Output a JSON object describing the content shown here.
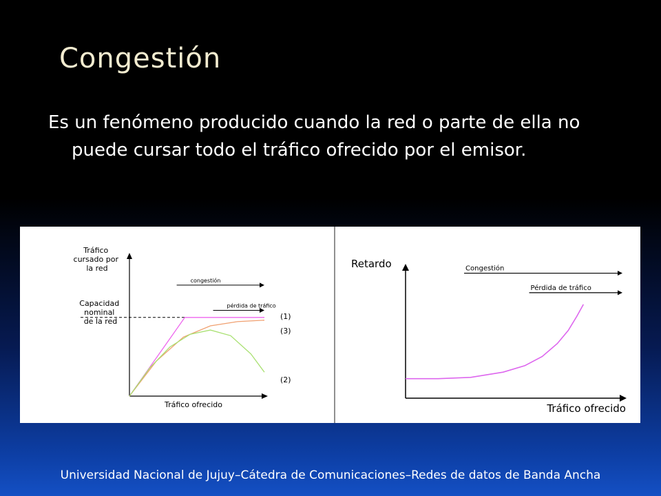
{
  "slide": {
    "title": "Congestión",
    "paragraph": "Es un fenómeno producido  cuando la red o parte de ella no puede cursar todo el tráfico ofrecido por el emisor.",
    "footer": "Universidad Nacional de Jujuy–Cátedra de Comunicaciones–Redes de datos de Banda Ancha"
  },
  "chart_data": [
    {
      "type": "line",
      "title": "",
      "ylabel": [
        "Tráfico",
        "cursado por",
        "la red"
      ],
      "xlabel": "Tráfico ofrecido",
      "capacity_label": [
        "Capacidad",
        "nominal",
        "de la red"
      ],
      "xlim": [
        0,
        100
      ],
      "ylim": [
        0,
        100
      ],
      "capacity": 56,
      "capacity_x": 41,
      "regions": [
        {
          "label": "congestión",
          "x_start": 35,
          "x_end": 100,
          "y": 79
        },
        {
          "label": "pérdida de tráfico",
          "x_start": 62,
          "x_end": 100,
          "y": 61
        }
      ],
      "series": [
        {
          "name": "(1)",
          "color": "#ee66ee",
          "points": [
            [
              0,
              0
            ],
            [
              41,
              56
            ],
            [
              100,
              56
            ]
          ]
        },
        {
          "name": "(3)",
          "color": "#f0a070",
          "points": [
            [
              0,
              0
            ],
            [
              20,
              25
            ],
            [
              40,
              42
            ],
            [
              60,
              50
            ],
            [
              80,
              53
            ],
            [
              100,
              54
            ]
          ]
        },
        {
          "name": "(2)",
          "color": "#a8e070",
          "points": [
            [
              0,
              0
            ],
            [
              15,
              20
            ],
            [
              30,
              35
            ],
            [
              45,
              44
            ],
            [
              60,
              47
            ],
            [
              75,
              43
            ],
            [
              90,
              30
            ],
            [
              100,
              17
            ]
          ]
        }
      ]
    },
    {
      "type": "line",
      "title": "",
      "ylabel": "Retardo",
      "xlabel": "Tráfico ofrecido",
      "xlim": [
        0,
        100
      ],
      "ylim": [
        0,
        100
      ],
      "regions": [
        {
          "label": "Congestión",
          "x_start": 27,
          "x_end": 100,
          "y": 96
        },
        {
          "label": "Pérdida de tráfico",
          "x_start": 57,
          "x_end": 100,
          "y": 81
        }
      ],
      "series": [
        {
          "name": "Retardo",
          "color": "#dd66ee",
          "points": [
            [
              0,
              15
            ],
            [
              15,
              15
            ],
            [
              30,
              16
            ],
            [
              45,
              20
            ],
            [
              55,
              25
            ],
            [
              63,
              32
            ],
            [
              70,
              42
            ],
            [
              75,
              52
            ],
            [
              79,
              63
            ],
            [
              82,
              72
            ]
          ]
        }
      ]
    }
  ]
}
